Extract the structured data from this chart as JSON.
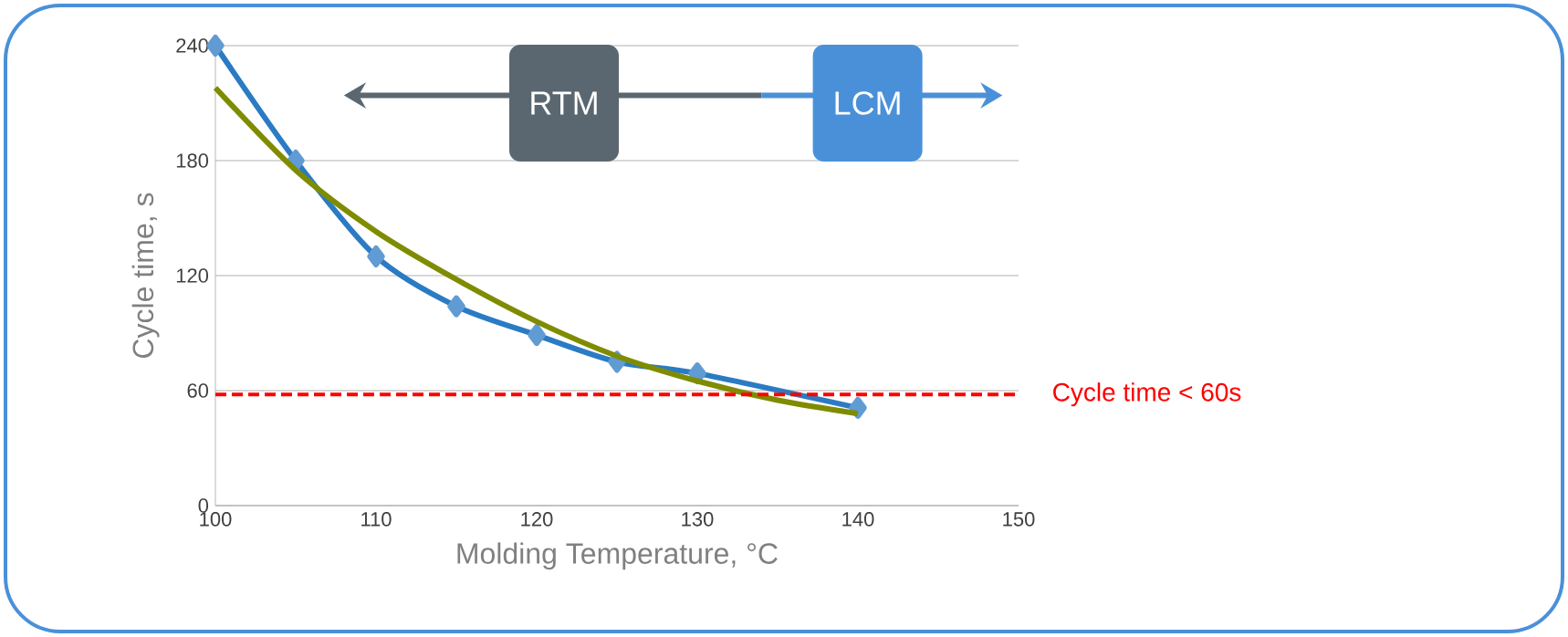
{
  "chart_data": {
    "type": "line",
    "xlabel": "Molding Temperature, °C",
    "ylabel": "Cycle time, s",
    "xlim": [
      100,
      150
    ],
    "xticks": [
      100,
      110,
      120,
      130,
      140,
      150
    ],
    "ylim": [
      0,
      240
    ],
    "yticks": [
      0,
      60,
      120,
      180,
      240
    ],
    "grid": "y",
    "series": [
      {
        "color": "#2b7bc4",
        "marker": "diamond",
        "x": [
          100,
          105,
          110,
          115,
          120,
          125,
          130,
          140
        ],
        "values": [
          240,
          180,
          130,
          104,
          89,
          75,
          69,
          51
        ]
      },
      {
        "color": "#7f8c00",
        "marker": "none",
        "x": [
          100,
          105,
          110,
          115,
          120,
          125,
          130,
          135,
          140
        ],
        "values": [
          218,
          175,
          143,
          118,
          96,
          78,
          65,
          55,
          48
        ]
      }
    ],
    "ref_lines": [
      {
        "axis": "y",
        "value": 58,
        "label": "Cycle time < 60s",
        "color": "#ff0000",
        "line_style": "dashed"
      }
    ],
    "annotations": [
      "RTM",
      "LCM"
    ]
  }
}
